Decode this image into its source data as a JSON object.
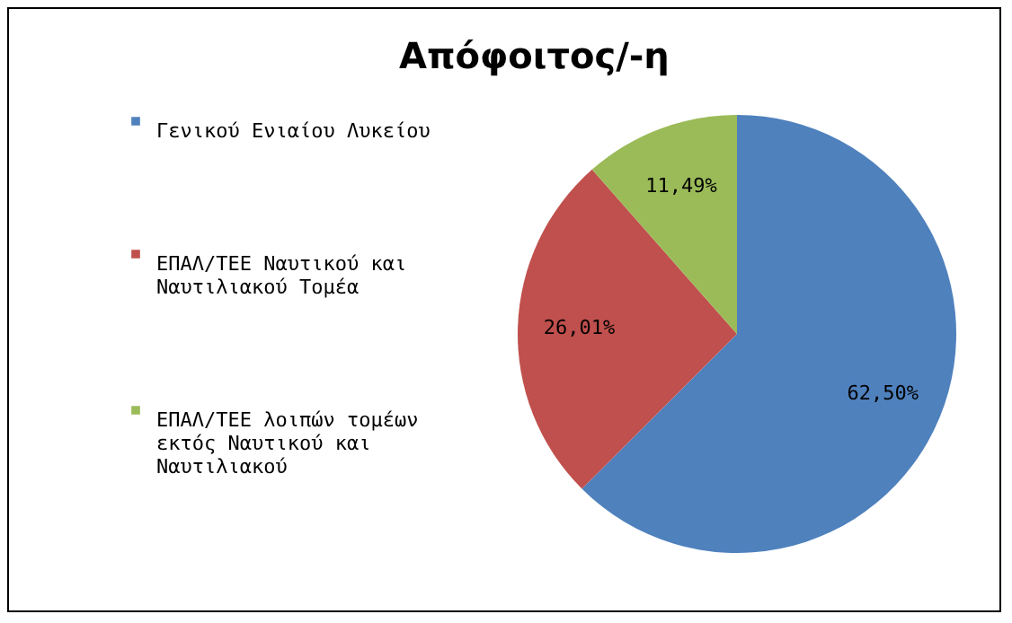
{
  "chart_data": {
    "type": "pie",
    "title": "Απόφοιτος/-η",
    "categories": [
      "Γενικού Ενιαίου Λυκείου",
      "ΕΠΑΛ/ΤΕΕ Ναυτικού και Ναυτιλιακού Τομέα",
      "ΕΠΑΛ/ΤΕΕ λοιπών τομέων εκτός Ναυτικού και Ναυτιλιακού"
    ],
    "values": [
      62.5,
      26.01,
      11.49
    ],
    "value_labels": [
      "62,50%",
      "26,01%",
      "11,49%"
    ],
    "colors": [
      "#4f81bd",
      "#c0504d",
      "#9bbb59"
    ],
    "legend": "left"
  }
}
